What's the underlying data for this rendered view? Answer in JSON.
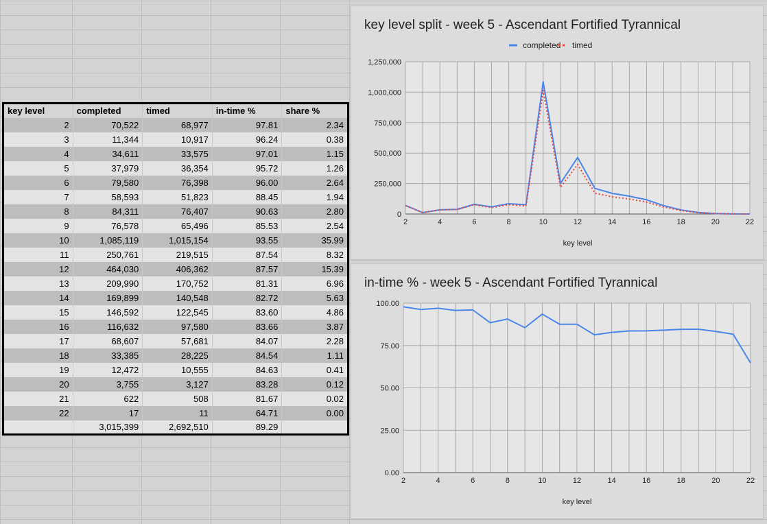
{
  "table": {
    "headers": [
      "key level",
      "completed",
      "timed",
      "in-time %",
      "share %"
    ],
    "rows": [
      [
        "2",
        "70,522",
        "68,977",
        "97.81",
        "2.34"
      ],
      [
        "3",
        "11,344",
        "10,917",
        "96.24",
        "0.38"
      ],
      [
        "4",
        "34,611",
        "33,575",
        "97.01",
        "1.15"
      ],
      [
        "5",
        "37,979",
        "36,354",
        "95.72",
        "1.26"
      ],
      [
        "6",
        "79,580",
        "76,398",
        "96.00",
        "2.64"
      ],
      [
        "7",
        "58,593",
        "51,823",
        "88.45",
        "1.94"
      ],
      [
        "8",
        "84,311",
        "76,407",
        "90.63",
        "2.80"
      ],
      [
        "9",
        "76,578",
        "65,496",
        "85.53",
        "2.54"
      ],
      [
        "10",
        "1,085,119",
        "1,015,154",
        "93.55",
        "35.99"
      ],
      [
        "11",
        "250,761",
        "219,515",
        "87.54",
        "8.32"
      ],
      [
        "12",
        "464,030",
        "406,362",
        "87.57",
        "15.39"
      ],
      [
        "13",
        "209,990",
        "170,752",
        "81.31",
        "6.96"
      ],
      [
        "14",
        "169,899",
        "140,548",
        "82.72",
        "5.63"
      ],
      [
        "15",
        "146,592",
        "122,545",
        "83.60",
        "4.86"
      ],
      [
        "16",
        "116,632",
        "97,580",
        "83.66",
        "3.87"
      ],
      [
        "17",
        "68,607",
        "57,681",
        "84.07",
        "2.28"
      ],
      [
        "18",
        "33,385",
        "28,225",
        "84.54",
        "1.11"
      ],
      [
        "19",
        "12,472",
        "10,555",
        "84.63",
        "0.41"
      ],
      [
        "20",
        "3,755",
        "3,127",
        "83.28",
        "0.12"
      ],
      [
        "21",
        "622",
        "508",
        "81.67",
        "0.02"
      ],
      [
        "22",
        "17",
        "11",
        "64.71",
        "0.00"
      ]
    ],
    "totals": [
      "",
      "3,015,399",
      "2,692,510",
      "89.29",
      ""
    ]
  },
  "chart_data": [
    {
      "type": "line",
      "title": "key level split - week 5 - Ascendant Fortified Tyrannical",
      "xlabel": "key level",
      "ylabel": "",
      "x": [
        2,
        3,
        4,
        5,
        6,
        7,
        8,
        9,
        10,
        11,
        12,
        13,
        14,
        15,
        16,
        17,
        18,
        19,
        20,
        21,
        22
      ],
      "series": [
        {
          "name": "completed",
          "color": "#4a86e8",
          "style": "solid",
          "values": [
            70522,
            11344,
            34611,
            37979,
            79580,
            58593,
            84311,
            76578,
            1085119,
            250761,
            464030,
            209990,
            169899,
            146592,
            116632,
            68607,
            33385,
            12472,
            3755,
            622,
            17
          ]
        },
        {
          "name": "timed",
          "color": "#e8453c",
          "style": "dotted",
          "values": [
            68977,
            10917,
            33575,
            36354,
            76398,
            51823,
            76407,
            65496,
            1015154,
            219515,
            406362,
            170752,
            140548,
            122545,
            97580,
            57681,
            28225,
            10555,
            3127,
            508,
            11
          ]
        }
      ],
      "xlim": [
        2,
        22
      ],
      "ylim": [
        0,
        1250000
      ],
      "xticks": [
        "2",
        "4",
        "6",
        "8",
        "10",
        "12",
        "14",
        "16",
        "18",
        "20",
        "22"
      ],
      "yticks": [
        "0",
        "250,000",
        "500,000",
        "750,000",
        "1,000,000",
        "1,250,000"
      ],
      "legend": "top-center",
      "grid": true
    },
    {
      "type": "line",
      "title": "in-time % - week 5 - Ascendant Fortified Tyrannical",
      "xlabel": "key level",
      "ylabel": "",
      "x": [
        2,
        3,
        4,
        5,
        6,
        7,
        8,
        9,
        10,
        11,
        12,
        13,
        14,
        15,
        16,
        17,
        18,
        19,
        20,
        21,
        22
      ],
      "series": [
        {
          "color": "#4a86e8",
          "style": "solid",
          "values": [
            97.81,
            96.24,
            97.01,
            95.72,
            96.0,
            88.45,
            90.63,
            85.53,
            93.55,
            87.54,
            87.57,
            81.31,
            82.72,
            83.6,
            83.66,
            84.07,
            84.54,
            84.63,
            83.28,
            81.67,
            64.71
          ]
        }
      ],
      "xlim": [
        2,
        22
      ],
      "ylim": [
        0,
        100
      ],
      "xticks": [
        "2",
        "4",
        "6",
        "8",
        "10",
        "12",
        "14",
        "16",
        "18",
        "20",
        "22"
      ],
      "yticks": [
        "0.00",
        "25.00",
        "50.00",
        "75.00",
        "100.00"
      ],
      "legend": "none",
      "grid": true
    }
  ]
}
